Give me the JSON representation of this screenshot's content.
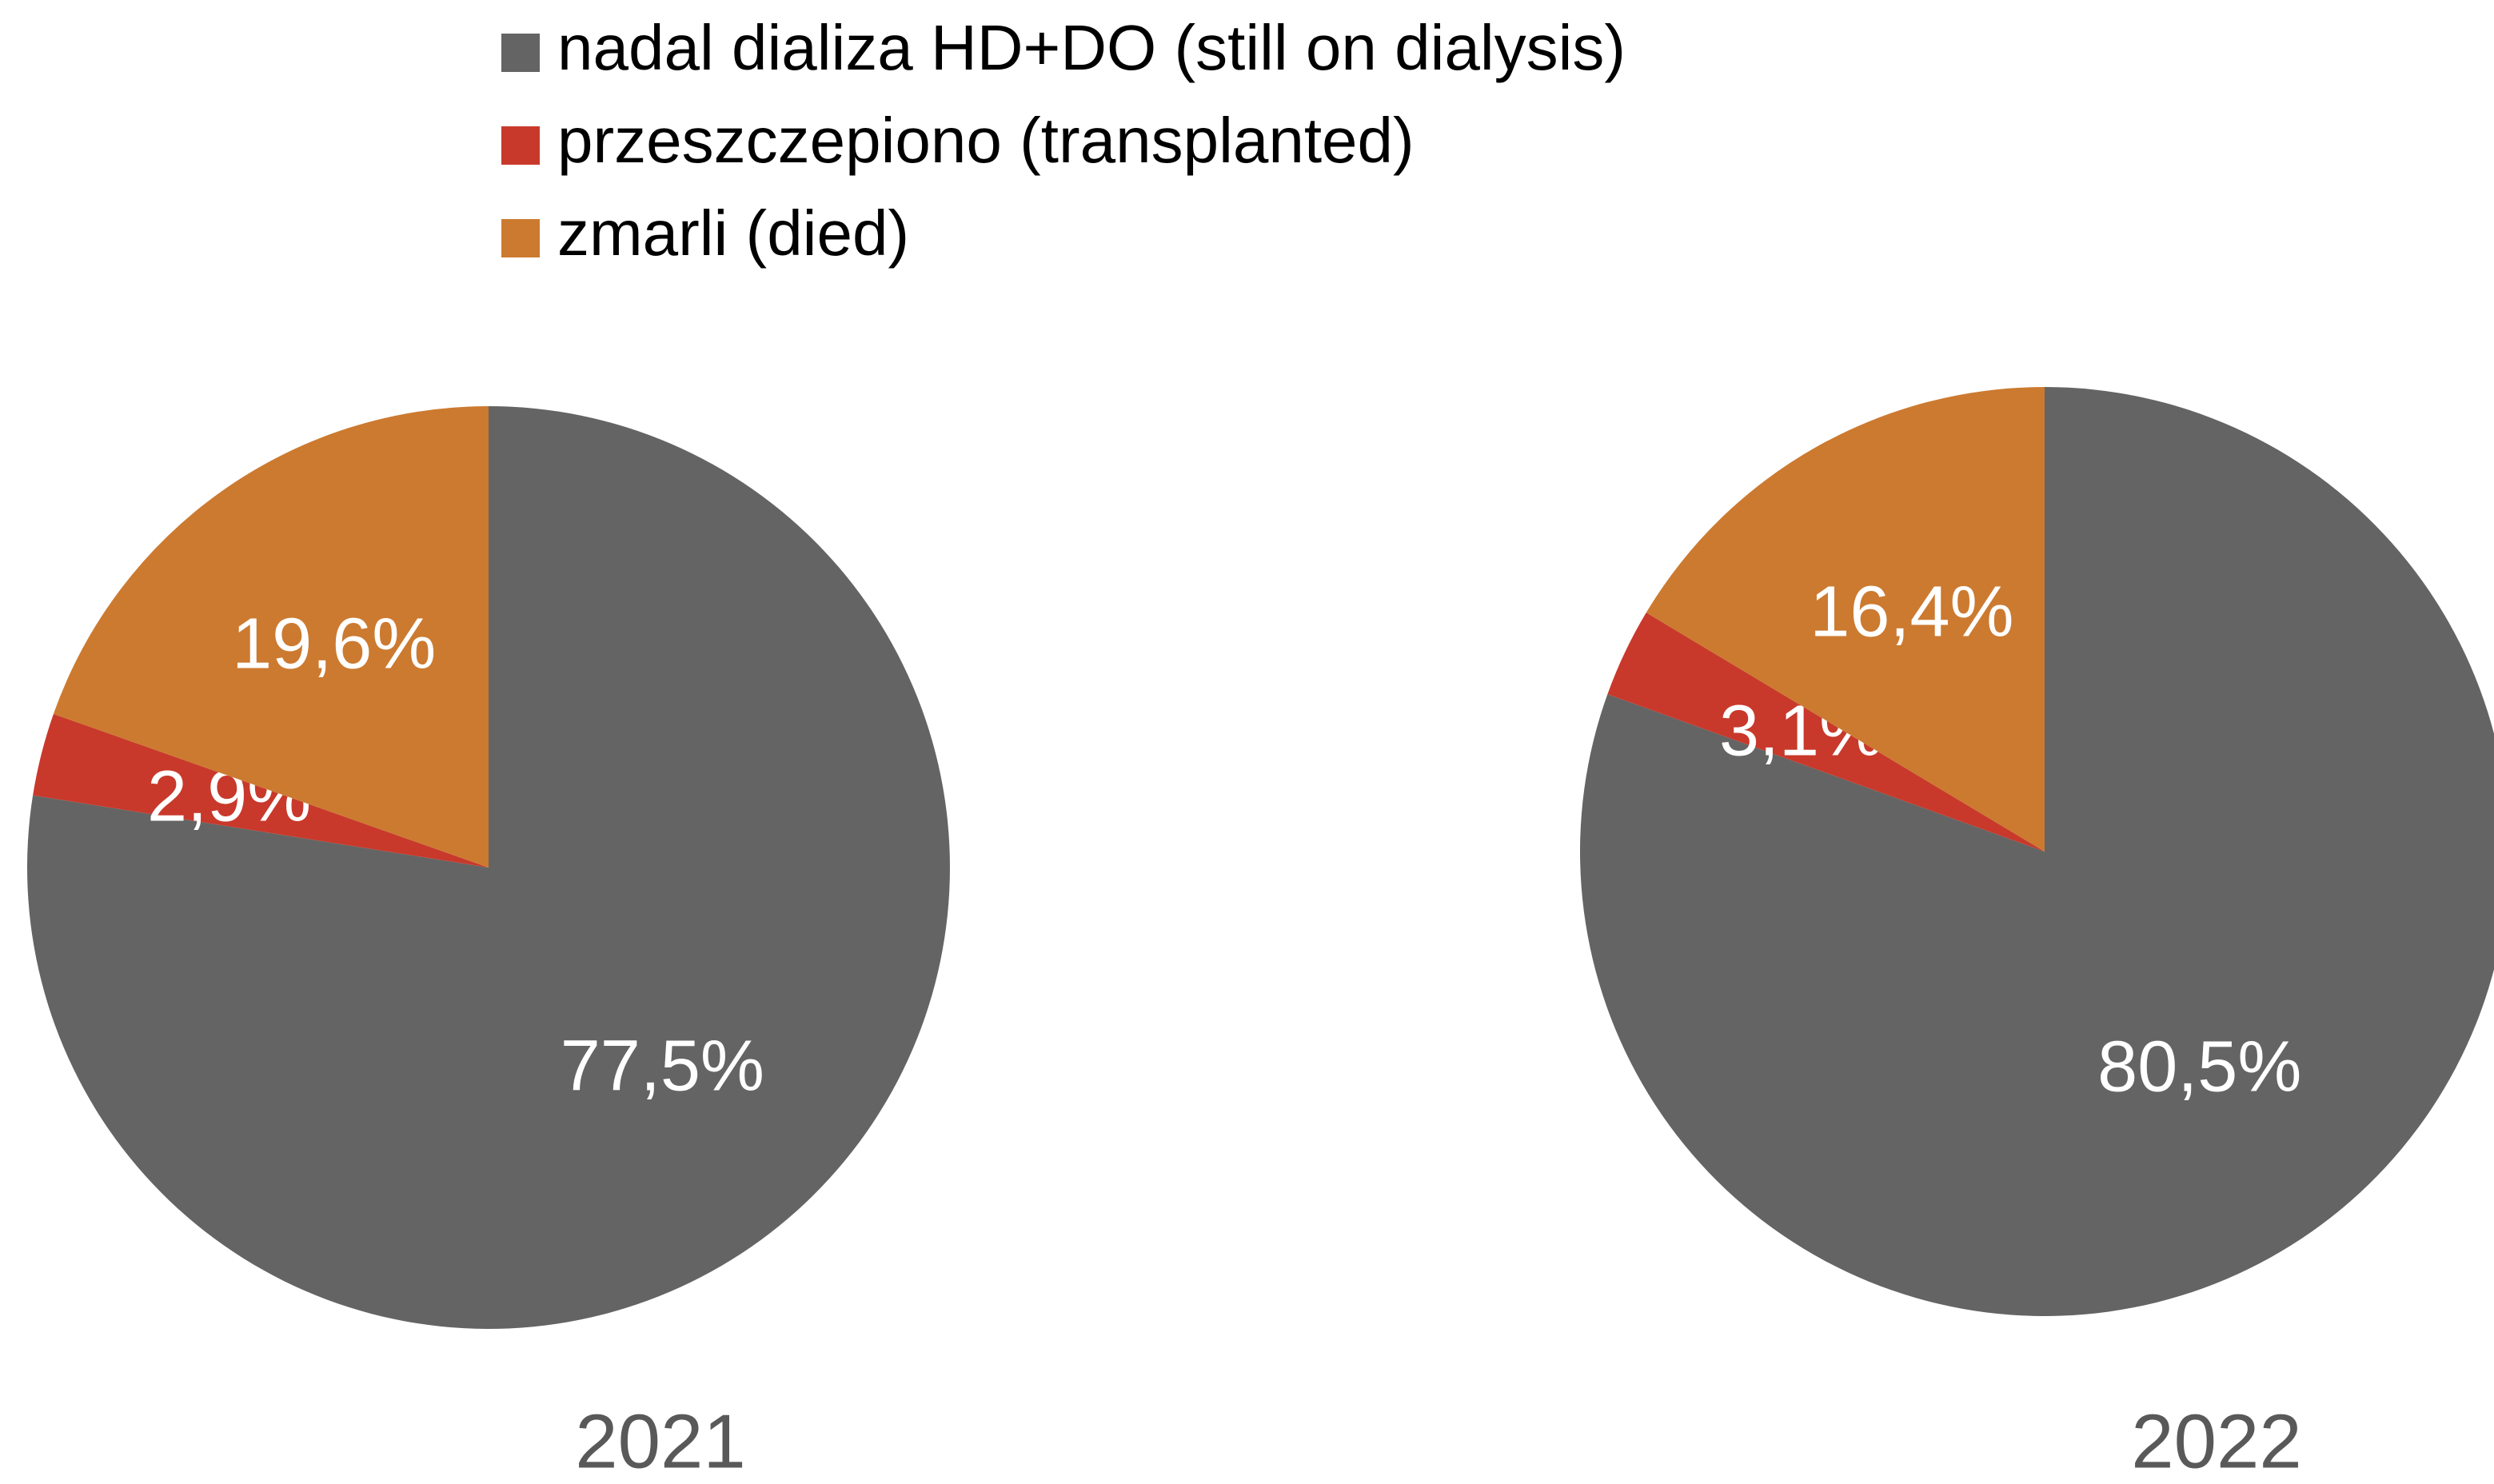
{
  "chart_data": [
    {
      "type": "pie",
      "title": "2021",
      "categories": [
        "nadal dializa HD+DO (still on dialysis)",
        "przeszczepiono (transplanted)",
        "zmarli (died)"
      ],
      "values": [
        77.5,
        2.9,
        19.6
      ],
      "value_labels": [
        "77,5%",
        "2,9%",
        "19,6%"
      ],
      "colors": [
        "#646464",
        "#c8392b",
        "#cc7a30"
      ]
    },
    {
      "type": "pie",
      "title": "2022",
      "categories": [
        "nadal dializa HD+DO (still on dialysis)",
        "przeszczepiono (transplanted)",
        "zmarli (died)"
      ],
      "values": [
        80.5,
        3.1,
        16.4
      ],
      "value_labels": [
        "80,5%",
        "3,1%",
        "16,4%"
      ],
      "colors": [
        "#646464",
        "#c8392b",
        "#cc7a30"
      ]
    }
  ]
}
